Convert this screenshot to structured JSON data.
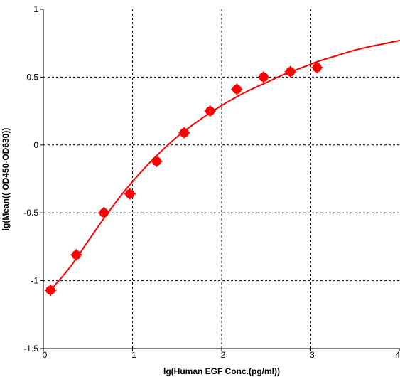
{
  "chart_data": {
    "type": "scatter",
    "xlabel": "lg(Human EGF Conc.(pg/ml))",
    "ylabel": "lg(Mean(( OD450-OD630))",
    "xlim": [
      0,
      4
    ],
    "ylim": [
      -1.5,
      1
    ],
    "x_ticks": [
      "0",
      "1",
      "2",
      "3",
      "4"
    ],
    "y_ticks": [
      "1",
      "0.5",
      "0",
      "-0.5",
      "-1",
      "-1.5"
    ],
    "x_tick_values": [
      0,
      1,
      2,
      3,
      4
    ],
    "y_tick_values": [
      1,
      0.5,
      0,
      -0.5,
      -1,
      -1.5
    ],
    "grid": true,
    "series": [
      {
        "kind": "points",
        "color": "#ff0000",
        "x": [
          0.08,
          0.37,
          0.68,
          0.97,
          1.27,
          1.58,
          1.87,
          2.17,
          2.47,
          2.77,
          3.07
        ],
        "y": [
          -1.07,
          -0.81,
          -0.5,
          -0.36,
          -0.12,
          0.09,
          0.25,
          0.41,
          0.5,
          0.54,
          0.57
        ]
      },
      {
        "kind": "fit-curve",
        "color": "#ff0000",
        "x": [
          0.08,
          0.3,
          0.5,
          0.68,
          0.85,
          1.0,
          1.15,
          1.3,
          1.5,
          1.7,
          1.9,
          2.1,
          2.3,
          2.5,
          2.7,
          2.9,
          3.1,
          3.3,
          3.5,
          3.7,
          4.0
        ],
        "y": [
          -1.07,
          -0.9,
          -0.71,
          -0.54,
          -0.39,
          -0.27,
          -0.16,
          -0.06,
          0.06,
          0.16,
          0.25,
          0.33,
          0.4,
          0.46,
          0.52,
          0.57,
          0.62,
          0.66,
          0.7,
          0.73,
          0.77
        ]
      }
    ]
  }
}
